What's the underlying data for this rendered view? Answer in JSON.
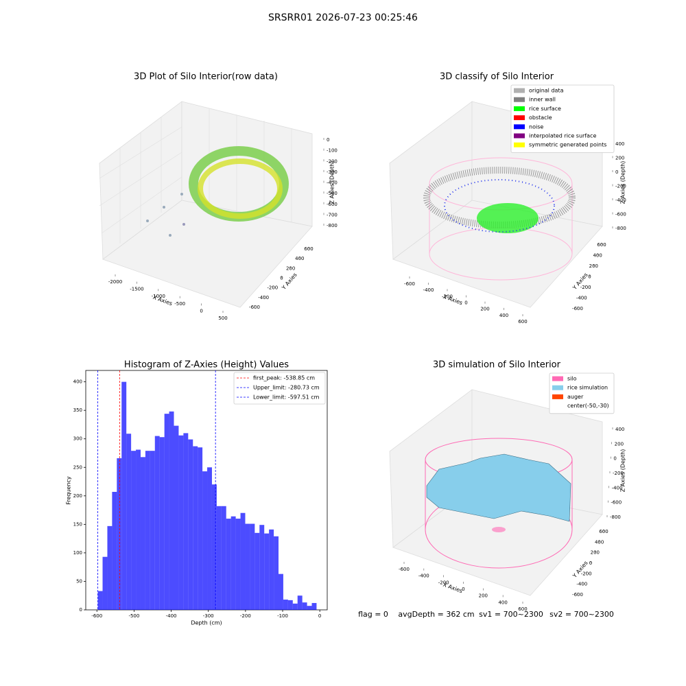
{
  "title": "SRSRR01 2026-07-23 00:25:46",
  "footer": [
    "flag = 0",
    "avgDepth = 362 cm",
    "sv1 = 700~2300",
    "sv2 = 700~2300"
  ],
  "chart_data": [
    {
      "type": "scatter3d",
      "title": "3D Plot of Silo Interior(row data)",
      "xlabel": "X Axies",
      "ylabel": "Y Axies",
      "zlabel": "Z Axies (Depth)",
      "xticks": [
        -2000,
        -1500,
        -1000,
        -500,
        0,
        500
      ],
      "yticks": [
        -600,
        -400,
        -200,
        0,
        200,
        400,
        600
      ],
      "zticks": [
        0,
        -100,
        -200,
        -300,
        -400,
        -500,
        -600,
        -700,
        -800
      ]
    },
    {
      "type": "scatter3d",
      "title": "3D classify of Silo Interior",
      "xlabel": "X Axies",
      "ylabel": "Y Axies",
      "zlabel": "Z Axies (Depth)",
      "xticks": [
        -600,
        -400,
        -200,
        0,
        200,
        400,
        600
      ],
      "yticks": [
        -600,
        -400,
        -200,
        0,
        200,
        400,
        600
      ],
      "zticks": [
        400,
        200,
        0,
        -200,
        -400,
        -600,
        -800
      ],
      "legend": "upper right",
      "series": [
        {
          "name": "original data",
          "color": "#b0b0b0"
        },
        {
          "name": "inner wall",
          "color": "#808080"
        },
        {
          "name": "rice surface",
          "color": "#00ff00"
        },
        {
          "name": "obstacle",
          "color": "#ff0000"
        },
        {
          "name": "noise",
          "color": "#0000ff"
        },
        {
          "name": "interpolated rice surface",
          "color": "#800080"
        },
        {
          "name": "symmetric generated points",
          "color": "#ffff00"
        }
      ]
    },
    {
      "type": "surface3d",
      "title": "3D simulation of Silo Interior",
      "xlabel": "X Axies",
      "ylabel": "Y Axies",
      "zlabel": "Z Axies (Depth)",
      "xticks": [
        -600,
        -400,
        -200,
        0,
        200,
        400,
        600
      ],
      "yticks": [
        -600,
        -400,
        -200,
        0,
        200,
        400,
        600
      ],
      "zticks": [
        400,
        200,
        0,
        -200,
        -400,
        -600,
        -800
      ],
      "legend": "upper right",
      "series": [
        {
          "name": "silo",
          "color": "#ff69b4"
        },
        {
          "name": "rice simulation",
          "color": "#87ceeb"
        },
        {
          "name": "auger",
          "color": "#ff4500"
        },
        {
          "name": "center(-50,-30)",
          "color": "#ffffff"
        }
      ]
    },
    {
      "type": "histogram",
      "title": "Histogram of Z-Axies (Height) Values",
      "xlabel": "Depth (cm)",
      "ylabel": "Frequency",
      "color": "#0000ff",
      "bins": [
        -597.5,
        -584.7,
        -571.9,
        -559.1,
        -546.3,
        -533.5,
        -520.7,
        -507.9,
        -495.1,
        -482.3,
        -469.5,
        -456.7,
        -443.9,
        -431.1,
        -418.3,
        -405.5,
        -392.7,
        -379.9,
        -367.1,
        -354.3,
        -341.5,
        -328.7,
        -315.9,
        -303.1,
        -290.3,
        -277.5,
        -264.7,
        -251.9,
        -239.1,
        -226.3,
        -213.5,
        -200.7,
        -187.9,
        -175.1,
        -162.3,
        -149.5,
        -136.7,
        -123.9,
        -111.1,
        -98.3,
        -85.5,
        -72.7,
        -59.9,
        -47.1,
        -34.3,
        -21.5,
        -8.7
      ],
      "counts": [
        33,
        93,
        147,
        207,
        266,
        400,
        309,
        279,
        281,
        268,
        279,
        279,
        305,
        303,
        344,
        348,
        323,
        306,
        310,
        299,
        287,
        285,
        243,
        250,
        220,
        182,
        182,
        160,
        164,
        160,
        170,
        151,
        151,
        135,
        149,
        134,
        141,
        129,
        63,
        18,
        17,
        11,
        25,
        13,
        7,
        12
      ],
      "xlim": [
        -630,
        20
      ],
      "ylim": [
        0,
        420
      ],
      "xticks": [
        -600,
        -500,
        -400,
        -300,
        -200,
        -100,
        0
      ],
      "yticks": [
        0,
        50,
        100,
        150,
        200,
        250,
        300,
        350,
        400
      ],
      "legend": "upper right",
      "lines": [
        {
          "name": "first_peak: -538.85 cm",
          "value": -538.85,
          "color": "#ff0000"
        },
        {
          "name": "Upper_limit: -280.73 cm",
          "value": -280.73,
          "color": "#0000ff"
        },
        {
          "name": "Lower_limit: -597.51 cm",
          "value": -597.51,
          "color": "#0000ff"
        }
      ]
    }
  ]
}
